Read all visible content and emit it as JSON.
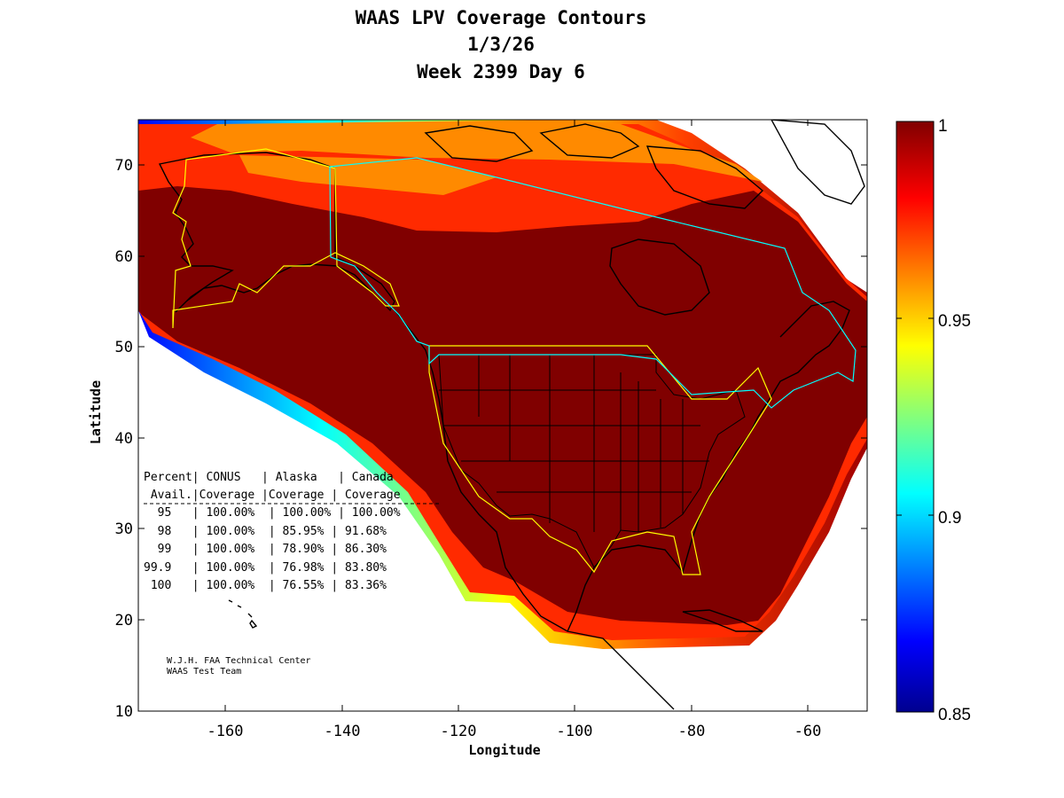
{
  "title": {
    "line1": "WAAS LPV Coverage Contours",
    "line2": "1/3/26",
    "line3": "Week 2399 Day 6"
  },
  "axes": {
    "xlabel": "Longitude",
    "ylabel": "Latitude",
    "xlim": [
      -175,
      -50
    ],
    "ylim": [
      10,
      75
    ],
    "xticks": [
      "-160",
      "-140",
      "-120",
      "-100",
      "-80",
      "-60"
    ],
    "yticks": [
      "10",
      "20",
      "30",
      "40",
      "50",
      "60",
      "70"
    ]
  },
  "colorbar": {
    "range": [
      0.85,
      1
    ],
    "ticks": [
      "1",
      "0.95",
      "0.9",
      "0.85"
    ]
  },
  "coverage_table": {
    "header1": "Percent| CONUS   | Alaska   | Canada",
    "header2": " Avail.|Coverage |Coverage | Coverage",
    "rows": [
      "  95   | 100.00%  | 100.00% | 100.00%",
      "  98   | 100.00%  | 85.95% | 91.68%",
      "  99   | 100.00%  | 78.90% | 86.30%",
      "99.9   | 100.00%  | 76.98% | 83.80%",
      " 100   | 100.00%  | 76.55% | 83.36%"
    ]
  },
  "credit": {
    "line1": "W.J.H. FAA Technical Center",
    "line2": "WAAS Test Team"
  },
  "colors": {
    "full_coverage": "#800000",
    "service_volume_us": "#ffff00",
    "service_volume_canada": "#00ffff"
  }
}
